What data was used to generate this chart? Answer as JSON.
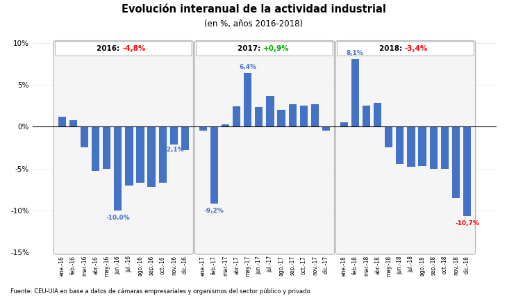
{
  "title": "Evolución interanual de la actividad industrial",
  "subtitle": "(en %, años 2016-2018)",
  "source": "Fuente: CEU-UIA en base a datos de cámaras empresariales y organismos del sector público y privado.",
  "bar_color": "#4472C4",
  "ylim": [
    -15,
    10
  ],
  "yticks": [
    -15,
    -10,
    -5,
    0,
    5,
    10
  ],
  "years": [
    {
      "year": 2016,
      "label_year": "2016: ",
      "label_value": "-4,8%",
      "value_color": "red",
      "months": [
        "ene.-16",
        "feb.-16",
        "mar.-16",
        "abr.-16",
        "may.-16",
        "jun.-16",
        "jul.-16",
        "ago.-16",
        "sep.-16",
        "oct.-16",
        "nov.-16",
        "dic.-16"
      ],
      "values": [
        1.2,
        0.8,
        -2.5,
        -5.3,
        -5.0,
        -10.0,
        -7.0,
        -6.7,
        -7.2,
        -6.7,
        -2.1,
        -2.8
      ],
      "min_label": "-10,0%",
      "min_label_color": "#4472C4",
      "min_label_val": -10.0,
      "min_label_idx": 5,
      "extra_label": "-2,1%",
      "extra_label_idx": 10,
      "extra_label_color": "#4472C4",
      "extra_label_val": -2.1
    },
    {
      "year": 2017,
      "label_year": "2017: ",
      "label_value": "+0,9%",
      "value_color": "#00aa00",
      "months": [
        "ene.-17",
        "feb.-17",
        "mar.-17",
        "abr.-17",
        "may.-17",
        "jun.-17",
        "jul.-17",
        "ago.-17",
        "sep.-17",
        "oct.-17",
        "nov.-17",
        "dic.-17"
      ],
      "values": [
        -0.5,
        -9.2,
        0.3,
        2.4,
        6.4,
        2.3,
        3.7,
        2.0,
        2.7,
        2.5,
        2.7,
        -0.5
      ],
      "min_label": "-9,2%",
      "min_label_color": "#4472C4",
      "min_label_val": -9.2,
      "min_label_idx": 1,
      "extra_label": "6,4%",
      "extra_label_idx": 4,
      "extra_label_color": "#4472C4",
      "extra_label_val": 6.4
    },
    {
      "year": 2018,
      "label_year": "2018: ",
      "label_value": "-3,4%",
      "value_color": "red",
      "months": [
        "ene.-18",
        "feb.-18",
        "mar.-18",
        "abr.-18",
        "may.-18",
        "jun.-18",
        "jul.-18",
        "ago.-18",
        "sep.-18",
        "oct.-18",
        "nov.-18",
        "dic.-18"
      ],
      "values": [
        0.5,
        8.1,
        2.5,
        2.8,
        -2.5,
        -4.5,
        -4.8,
        -4.7,
        -5.0,
        -5.0,
        -8.5,
        -10.7
      ],
      "min_label": "-10,7%",
      "min_label_color": "red",
      "min_label_val": -10.7,
      "min_label_idx": 11,
      "extra_label": "8,1%",
      "extra_label_idx": 1,
      "extra_label_color": "#4472C4",
      "extra_label_val": 8.1
    }
  ],
  "background_color": "#ffffff"
}
